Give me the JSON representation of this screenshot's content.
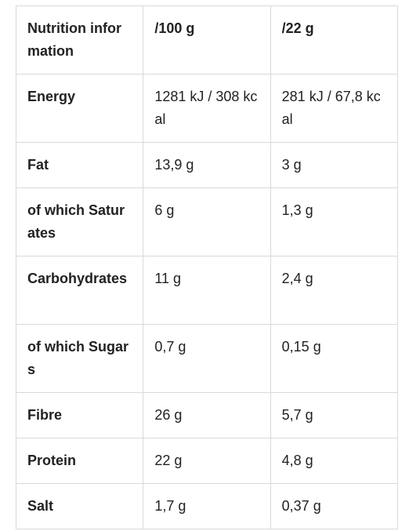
{
  "table": {
    "header": [
      "Nutrition information",
      "/100 g",
      "/22 g"
    ],
    "rows": [
      {
        "label": "Energy",
        "per100": "1281 kJ / 308 kcal",
        "per22": "281 kJ / 67,8 kcal"
      },
      {
        "label": "Fat",
        "per100": "13,9 g",
        "per22": "3 g"
      },
      {
        "label": "of which Saturates",
        "per100": "6 g",
        "per22": "1,3 g"
      },
      {
        "label": "Carbohydrates",
        "per100": "11 g",
        "per22": "2,4 g"
      },
      {
        "label": "of which Sugars",
        "per100": "0,7 g",
        "per22": "0,15 g"
      },
      {
        "label": "Fibre",
        "per100": "26 g",
        "per22": "5,7 g"
      },
      {
        "label": "Protein",
        "per100": "22 g",
        "per22": "4,8 g"
      },
      {
        "label": "Salt",
        "per100": "1,7 g",
        "per22": "0,37 g"
      }
    ]
  }
}
